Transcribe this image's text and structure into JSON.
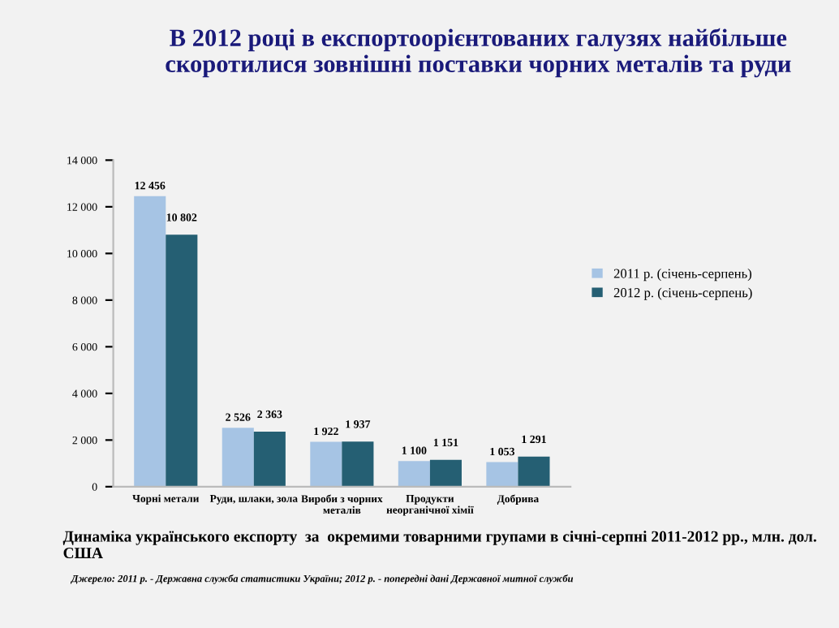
{
  "chart_data": {
    "type": "bar",
    "title": "В 2012 році в експортоорієнтованих галузях найбільше скоротилися зовнішні поставки чорних металів та руди",
    "categories": [
      "Чорні метали",
      "Руди, шлаки, зола",
      "Вироби з чорних\nметалів",
      "Продукти\nнеорганічної хімії",
      "Добрива"
    ],
    "series": [
      {
        "name": "2011 р. (січень-серпень)",
        "color": "#a6c4e4",
        "values": [
          12456,
          2526,
          1922,
          1100,
          1053
        ],
        "value_labels": [
          "12 456",
          "2 526",
          "1 922",
          "1 100",
          "1 053"
        ]
      },
      {
        "name": "2012 р. (січень-серпень)",
        "color": "#255f73",
        "values": [
          10802,
          2363,
          1937,
          1151,
          1291
        ],
        "value_labels": [
          "10 802",
          "2 363",
          "1 937",
          "1 151",
          "1 291"
        ]
      }
    ],
    "ylim": [
      0,
      14000
    ],
    "yticks": [
      {
        "value": 0,
        "label": "0"
      },
      {
        "value": 2000,
        "label": "2 000"
      },
      {
        "value": 4000,
        "label": "4 000"
      },
      {
        "value": 6000,
        "label": "6 000"
      },
      {
        "value": 8000,
        "label": "8 000"
      },
      {
        "value": 10000,
        "label": "10 000"
      },
      {
        "value": 12000,
        "label": "12 000"
      },
      {
        "value": 14000,
        "label": "14 000"
      }
    ],
    "grid": false,
    "legend": "right",
    "annotations": [
      "Динаміка українського експорту  за  окремими товарними групами в січні-серпні 2011-2012 рр., млн. дол. США",
      "Джерело: 2011 р. - Державна служба статистики України; 2012 р. - попередні дані Державної митної служби"
    ]
  }
}
